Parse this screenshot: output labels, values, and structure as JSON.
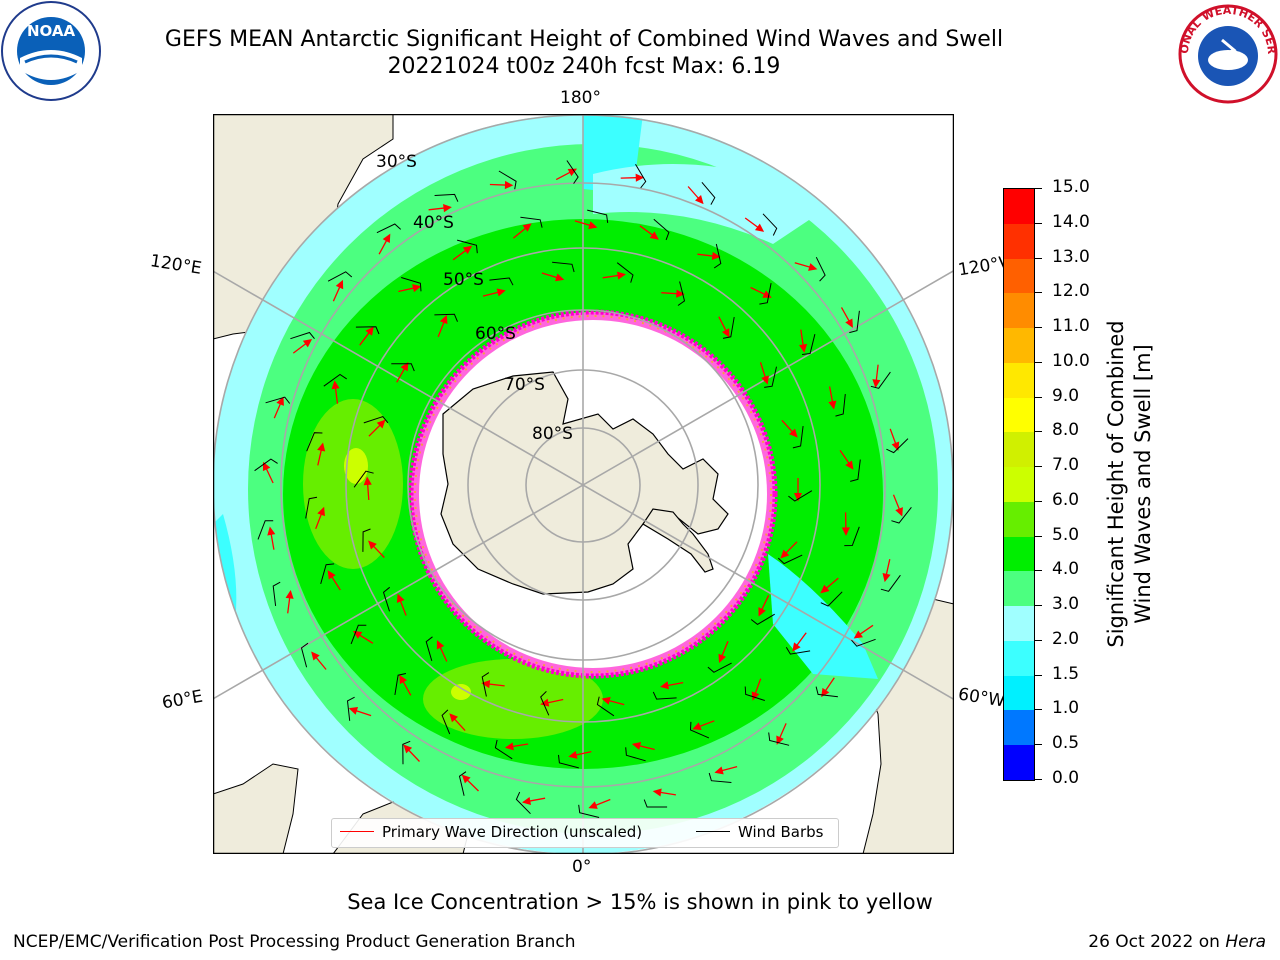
{
  "header": {
    "title_line1": "GEFS MEAN Antarctic Significant Height of Combined Wind Waves and Swell",
    "title_line2": "20221024 t00z 240h fcst   Max: 6.19"
  },
  "logos": {
    "left": "NOAA",
    "right": "NATIONAL WEATHER SERVICE"
  },
  "map": {
    "projection": "south-polar-stereographic",
    "longitude_labels": {
      "top": "180°",
      "bottom": "0°",
      "upper_left": "120°E",
      "lower_left": "60°E",
      "upper_right": "120°W",
      "lower_right": "60°W"
    },
    "latitude_labels": [
      "30°S",
      "40°S",
      "50°S",
      "60°S",
      "70°S",
      "80°S"
    ],
    "gridlines": true,
    "colors": {
      "land": "#efecdc",
      "ice_edge": "#ff33cc",
      "ice_fringe": "#f5a040",
      "arrow": "#ff0000",
      "barb": "#000000"
    }
  },
  "legend": {
    "items": [
      {
        "label": "Primary Wave Direction (unscaled)",
        "color": "#ff0000"
      },
      {
        "label": "Wind Barbs",
        "color": "#000000"
      }
    ]
  },
  "colorbar": {
    "label_line1": "Significant Height of Combined",
    "label_line2": "Wind Waves and Swell [m]",
    "ticks": [
      "0.0",
      "0.5",
      "1.0",
      "1.5",
      "2.0",
      "3.0",
      "4.0",
      "5.0",
      "6.0",
      "7.0",
      "8.0",
      "9.0",
      "10.0",
      "11.0",
      "12.0",
      "13.0",
      "14.0",
      "15.0"
    ],
    "colors": [
      "#0000ff",
      "#0078ff",
      "#00f0ff",
      "#3cffff",
      "#a0ffff",
      "#4cff80",
      "#00ee00",
      "#66ee00",
      "#ccff00",
      "#d0f000",
      "#ffff00",
      "#ffe800",
      "#ffb800",
      "#ff8c00",
      "#ff6000",
      "#ff3000",
      "#ff0000"
    ]
  },
  "footer": {
    "note": "Sea Ice Concentration > 15% is shown in pink to yellow",
    "credit": "NCEP/EMC/Verification Post Processing Product Generation Branch",
    "date": "26 Oct 2022 on",
    "host": "Hera"
  }
}
